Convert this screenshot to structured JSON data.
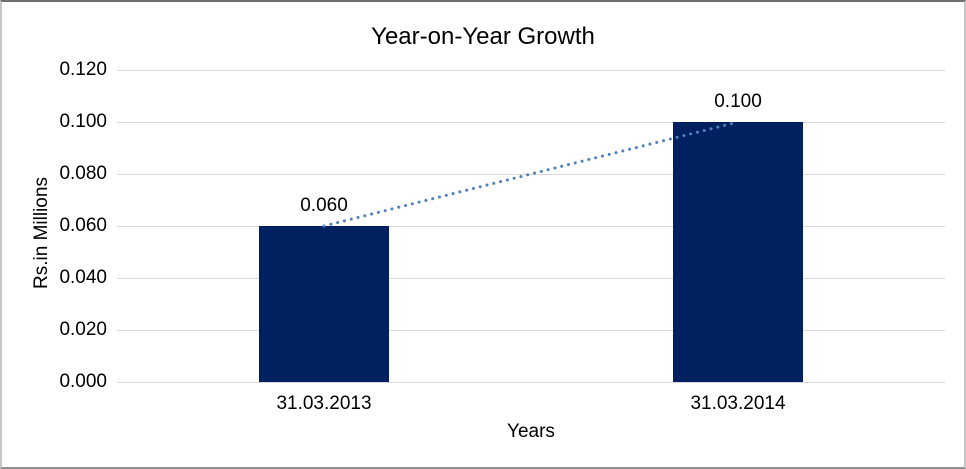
{
  "window": {
    "background": "#ffffff",
    "border_color": "#8f8f8f"
  },
  "chart_data": {
    "type": "bar",
    "title": "Year-on-Year Growth",
    "xlabel": "Years",
    "ylabel": "Rs.in Millions",
    "categories": [
      "31.03.2013",
      "31.03.2014"
    ],
    "values": [
      0.06,
      0.1
    ],
    "value_labels": [
      "0.060",
      "0.100"
    ],
    "ytick_values": [
      0.0,
      0.02,
      0.04,
      0.06,
      0.08,
      0.1,
      0.12
    ],
    "ytick_labels": [
      "0.000",
      "0.020",
      "0.040",
      "0.060",
      "0.080",
      "0.100",
      "0.120"
    ],
    "ylim": [
      0.0,
      0.12
    ],
    "grid": true,
    "legend": false,
    "bar_color": "#002060",
    "gridline_color": "#d9d9d9",
    "text_color": "#000000",
    "trendline": {
      "style": "dotted",
      "color": "#4f81bd",
      "x": [
        "31.03.2013",
        "31.03.2014"
      ],
      "y": [
        0.06,
        0.1
      ]
    }
  }
}
